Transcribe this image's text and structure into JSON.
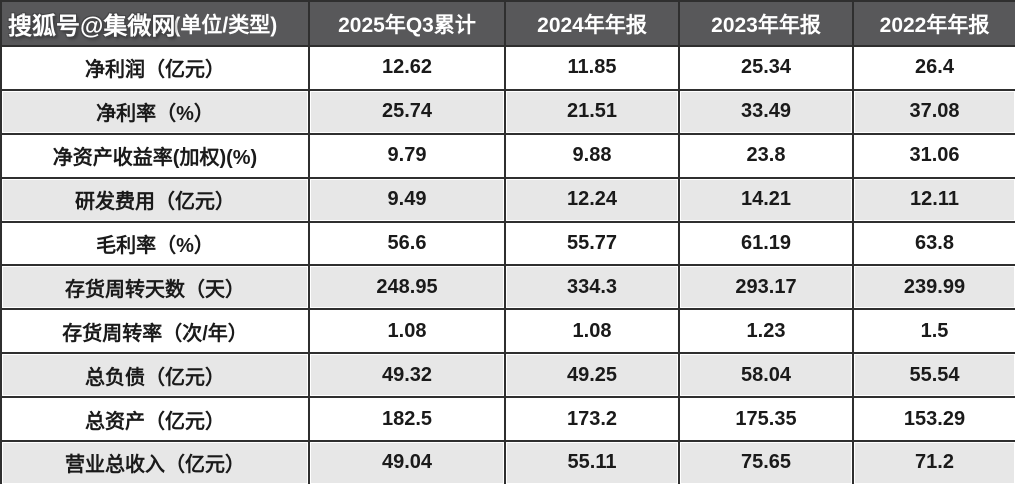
{
  "watermark": {
    "text": "搜狐号@集微网"
  },
  "chart_data": {
    "type": "table",
    "title": "",
    "columns": [
      "(单位/类型)",
      "2025年Q3累计",
      "2024年年报",
      "2023年年报",
      "2022年年报"
    ],
    "rows": [
      {
        "label": "净利润（亿元）",
        "values": [
          "12.62",
          "11.85",
          "25.34",
          "26.4"
        ]
      },
      {
        "label": "净利率（%）",
        "values": [
          "25.74",
          "21.51",
          "33.49",
          "37.08"
        ]
      },
      {
        "label": "净资产收益率(加权)(%)",
        "values": [
          "9.79",
          "9.88",
          "23.8",
          "31.06"
        ]
      },
      {
        "label": "研发费用（亿元）",
        "values": [
          "9.49",
          "12.24",
          "14.21",
          "12.11"
        ]
      },
      {
        "label": "毛利率（%）",
        "values": [
          "56.6",
          "55.77",
          "61.19",
          "63.8"
        ]
      },
      {
        "label": "存货周转天数（天）",
        "values": [
          "248.95",
          "334.3",
          "293.17",
          "239.99"
        ]
      },
      {
        "label": "存货周转率（次/年）",
        "values": [
          "1.08",
          "1.08",
          "1.23",
          "1.5"
        ]
      },
      {
        "label": "总负债（亿元）",
        "values": [
          "49.32",
          "49.25",
          "58.04",
          "55.54"
        ]
      },
      {
        "label": "总资产（亿元）",
        "values": [
          "182.5",
          "173.2",
          "175.35",
          "153.29"
        ]
      },
      {
        "label": "营业总收入（亿元）",
        "values": [
          "49.04",
          "55.11",
          "75.65",
          "71.2"
        ]
      }
    ]
  },
  "colors": {
    "header_bg": "#58585a",
    "header_text": "#ffffff",
    "row_bg": "#ffffff",
    "row_alt_bg": "#e7e7e7",
    "border": "#2f2f2f",
    "text": "#1a1a1a",
    "watermark_text": "#ffffff",
    "watermark_outline": "#454547"
  }
}
